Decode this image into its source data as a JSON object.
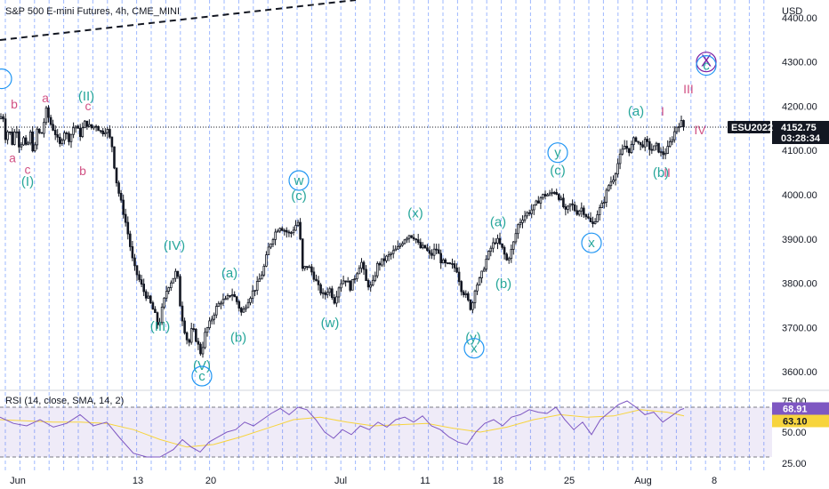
{
  "chart_data": [
    {
      "type": "candlestick",
      "title": "S&P 500 E-mini Futures, 4h, CME_MINI",
      "currency": "USD",
      "ylim": [
        3560,
        4440
      ],
      "y_ticks": [
        3600,
        3700,
        3800,
        3900,
        4000,
        4100,
        4200,
        4300,
        4400
      ],
      "y_tick_labels": [
        "3600.00",
        "3700.00",
        "3800.00",
        "3900.00",
        "4000.00",
        "4100.00",
        "4200.00",
        "4300.00",
        "4400.00"
      ],
      "x_labels": [
        "Jun",
        "13",
        "20",
        "Jul",
        "11",
        "18",
        "25",
        "Aug",
        "8"
      ],
      "grid": false,
      "price_path": [
        {
          "t": 0,
          "p": 4172
        },
        {
          "t": 3,
          "p": 4185
        },
        {
          "t": 6,
          "p": 4130
        },
        {
          "t": 10,
          "p": 4150
        },
        {
          "t": 14,
          "p": 4115
        },
        {
          "t": 18,
          "p": 4160
        },
        {
          "t": 22,
          "p": 4105
        },
        {
          "t": 26,
          "p": 4130
        },
        {
          "t": 30,
          "p": 4100
        },
        {
          "t": 34,
          "p": 4140
        },
        {
          "t": 38,
          "p": 4088
        },
        {
          "t": 42,
          "p": 4150
        },
        {
          "t": 46,
          "p": 4130
        },
        {
          "t": 52,
          "p": 4190
        },
        {
          "t": 57,
          "p": 4160
        },
        {
          "t": 62,
          "p": 4140
        },
        {
          "t": 67,
          "p": 4110
        },
        {
          "t": 72,
          "p": 4145
        },
        {
          "t": 78,
          "p": 4125
        },
        {
          "t": 84,
          "p": 4160
        },
        {
          "t": 90,
          "p": 4135
        },
        {
          "t": 96,
          "p": 4165
        },
        {
          "t": 102,
          "p": 4150
        },
        {
          "t": 108,
          "p": 4158
        },
        {
          "t": 114,
          "p": 4140
        },
        {
          "t": 120,
          "p": 4150
        },
        {
          "t": 126,
          "p": 4110
        },
        {
          "t": 130,
          "p": 4040
        },
        {
          "t": 134,
          "p": 4000
        },
        {
          "t": 140,
          "p": 3950
        },
        {
          "t": 145,
          "p": 3900
        },
        {
          "t": 150,
          "p": 3840
        },
        {
          "t": 156,
          "p": 3810
        },
        {
          "t": 162,
          "p": 3780
        },
        {
          "t": 168,
          "p": 3760
        },
        {
          "t": 174,
          "p": 3730
        },
        {
          "t": 178,
          "p": 3700
        },
        {
          "t": 182,
          "p": 3740
        },
        {
          "t": 188,
          "p": 3790
        },
        {
          "t": 194,
          "p": 3810
        },
        {
          "t": 199,
          "p": 3830
        },
        {
          "t": 203,
          "p": 3740
        },
        {
          "t": 208,
          "p": 3690
        },
        {
          "t": 212,
          "p": 3660
        },
        {
          "t": 216,
          "p": 3700
        },
        {
          "t": 221,
          "p": 3670
        },
        {
          "t": 226,
          "p": 3640
        },
        {
          "t": 231,
          "p": 3690
        },
        {
          "t": 236,
          "p": 3710
        },
        {
          "t": 242,
          "p": 3740
        },
        {
          "t": 248,
          "p": 3760
        },
        {
          "t": 254,
          "p": 3760
        },
        {
          "t": 260,
          "p": 3780
        },
        {
          "t": 266,
          "p": 3760
        },
        {
          "t": 272,
          "p": 3730
        },
        {
          "t": 278,
          "p": 3760
        },
        {
          "t": 284,
          "p": 3780
        },
        {
          "t": 290,
          "p": 3800
        },
        {
          "t": 296,
          "p": 3830
        },
        {
          "t": 302,
          "p": 3880
        },
        {
          "t": 308,
          "p": 3910
        },
        {
          "t": 314,
          "p": 3930
        },
        {
          "t": 320,
          "p": 3920
        },
        {
          "t": 326,
          "p": 3910
        },
        {
          "t": 332,
          "p": 3930
        },
        {
          "t": 336,
          "p": 3940
        },
        {
          "t": 340,
          "p": 3830
        },
        {
          "t": 346,
          "p": 3840
        },
        {
          "t": 352,
          "p": 3820
        },
        {
          "t": 358,
          "p": 3790
        },
        {
          "t": 364,
          "p": 3770
        },
        {
          "t": 370,
          "p": 3790
        },
        {
          "t": 376,
          "p": 3760
        },
        {
          "t": 382,
          "p": 3800
        },
        {
          "t": 388,
          "p": 3810
        },
        {
          "t": 394,
          "p": 3790
        },
        {
          "t": 400,
          "p": 3820
        },
        {
          "t": 406,
          "p": 3850
        },
        {
          "t": 412,
          "p": 3800
        },
        {
          "t": 418,
          "p": 3790
        },
        {
          "t": 424,
          "p": 3840
        },
        {
          "t": 430,
          "p": 3850
        },
        {
          "t": 436,
          "p": 3860
        },
        {
          "t": 442,
          "p": 3870
        },
        {
          "t": 448,
          "p": 3880
        },
        {
          "t": 454,
          "p": 3900
        },
        {
          "t": 460,
          "p": 3910
        },
        {
          "t": 466,
          "p": 3905
        },
        {
          "t": 472,
          "p": 3880
        },
        {
          "t": 478,
          "p": 3880
        },
        {
          "t": 484,
          "p": 3860
        },
        {
          "t": 490,
          "p": 3880
        },
        {
          "t": 496,
          "p": 3850
        },
        {
          "t": 502,
          "p": 3840
        },
        {
          "t": 508,
          "p": 3840
        },
        {
          "t": 514,
          "p": 3830
        },
        {
          "t": 518,
          "p": 3790
        },
        {
          "t": 524,
          "p": 3770
        },
        {
          "t": 530,
          "p": 3740
        },
        {
          "t": 534,
          "p": 3790
        },
        {
          "t": 540,
          "p": 3810
        },
        {
          "t": 546,
          "p": 3850
        },
        {
          "t": 552,
          "p": 3880
        },
        {
          "t": 558,
          "p": 3900
        },
        {
          "t": 564,
          "p": 3880
        },
        {
          "t": 570,
          "p": 3850
        },
        {
          "t": 576,
          "p": 3880
        },
        {
          "t": 582,
          "p": 3930
        },
        {
          "t": 588,
          "p": 3950
        },
        {
          "t": 594,
          "p": 3960
        },
        {
          "t": 600,
          "p": 3970
        },
        {
          "t": 606,
          "p": 3990
        },
        {
          "t": 612,
          "p": 4000
        },
        {
          "t": 618,
          "p": 4000
        },
        {
          "t": 624,
          "p": 4010
        },
        {
          "t": 630,
          "p": 3990
        },
        {
          "t": 636,
          "p": 3960
        },
        {
          "t": 642,
          "p": 3980
        },
        {
          "t": 648,
          "p": 3960
        },
        {
          "t": 654,
          "p": 3970
        },
        {
          "t": 660,
          "p": 3950
        },
        {
          "t": 666,
          "p": 3930
        },
        {
          "t": 672,
          "p": 3960
        },
        {
          "t": 678,
          "p": 3980
        },
        {
          "t": 684,
          "p": 4020
        },
        {
          "t": 690,
          "p": 4040
        },
        {
          "t": 696,
          "p": 4080
        },
        {
          "t": 702,
          "p": 4110
        },
        {
          "t": 708,
          "p": 4100
        },
        {
          "t": 714,
          "p": 4130
        },
        {
          "t": 720,
          "p": 4110
        },
        {
          "t": 726,
          "p": 4120
        },
        {
          "t": 732,
          "p": 4100
        },
        {
          "t": 738,
          "p": 4110
        },
        {
          "t": 744,
          "p": 4090
        },
        {
          "t": 750,
          "p": 4100
        },
        {
          "t": 756,
          "p": 4130
        },
        {
          "t": 762,
          "p": 4160
        },
        {
          "t": 766,
          "p": 4162
        },
        {
          "t": 769,
          "p": 4152
        }
      ],
      "last_price": {
        "symbol": "ESU2022",
        "price": "4152.75",
        "countdown": "03:28:34"
      },
      "wave_labels": [
        {
          "text": "b",
          "t": 16,
          "p": 4195,
          "color": "pink"
        },
        {
          "text": "a",
          "t": 51,
          "p": 4209,
          "color": "pink"
        },
        {
          "text": "(II)",
          "t": 97,
          "p": 4213,
          "color": "teal"
        },
        {
          "text": "c",
          "t": 99,
          "p": 4191,
          "color": "pink"
        },
        {
          "text": "a",
          "t": 14,
          "p": 4073,
          "color": "pink"
        },
        {
          "text": "c",
          "t": 31,
          "p": 4047,
          "color": "pink"
        },
        {
          "text": "(I)",
          "t": 31,
          "p": 4020,
          "color": "teal"
        },
        {
          "text": "b",
          "t": 93,
          "p": 4044,
          "color": "pink"
        },
        {
          "text": "(c)",
          "t": 336,
          "p": 3988,
          "color": "teal"
        },
        {
          "text": "(x)",
          "t": 467,
          "p": 3949,
          "color": "teal"
        },
        {
          "text": "(a)",
          "t": 560,
          "p": 3929,
          "color": "teal"
        },
        {
          "text": "(c)",
          "t": 627,
          "p": 4045,
          "color": "teal"
        },
        {
          "text": "(a)",
          "t": 715,
          "p": 4179,
          "color": "teal"
        },
        {
          "text": "I",
          "t": 745,
          "p": 4179,
          "color": "pink"
        },
        {
          "text": "III",
          "t": 774,
          "p": 4229,
          "color": "pink"
        },
        {
          "text": "IV",
          "t": 787,
          "p": 4137,
          "color": "pink"
        },
        {
          "text": "(b)",
          "t": 743,
          "p": 4040,
          "color": "teal"
        },
        {
          "text": "II",
          "t": 750,
          "p": 4040,
          "color": "pink"
        },
        {
          "text": "(IV)",
          "t": 196,
          "p": 3875,
          "color": "teal"
        },
        {
          "text": "(a)",
          "t": 258,
          "p": 3813,
          "color": "teal"
        },
        {
          "text": "(III)",
          "t": 180,
          "p": 3693,
          "color": "teal"
        },
        {
          "text": "(b)",
          "t": 268,
          "p": 3667,
          "color": "teal"
        },
        {
          "text": "(w)",
          "t": 371,
          "p": 3701,
          "color": "teal"
        },
        {
          "text": "(b)",
          "t": 566,
          "p": 3789,
          "color": "teal"
        },
        {
          "text": "(y)",
          "t": 532,
          "p": 3667,
          "color": "teal"
        },
        {
          "text": "(V)",
          "t": 227,
          "p": 3604,
          "color": "teal"
        }
      ],
      "circled_labels": [
        {
          "text": "w",
          "t": 336,
          "p": 4022,
          "color": "teal"
        },
        {
          "text": "y",
          "t": 627,
          "p": 4085,
          "color": "teal"
        },
        {
          "text": "x",
          "t": 665,
          "p": 3881,
          "color": "teal"
        },
        {
          "text": "x",
          "t": 533,
          "p": 3643,
          "color": "teal"
        },
        {
          "text": "c",
          "t": 227,
          "p": 3580,
          "color": "teal"
        },
        {
          "text": "X",
          "t": 794,
          "p": 4290,
          "color": "purple"
        },
        {
          "text": "c",
          "t": 794,
          "p": 4282,
          "color": "teal"
        },
        {
          "text": "",
          "t": 2,
          "p": 4252,
          "color": "teal"
        }
      ]
    },
    {
      "type": "line",
      "title": "RSI (14, close, SMA, 14, 2)",
      "ylim": [
        20,
        80
      ],
      "y_tick_labels": [
        "25.00",
        "50.00",
        "75.00"
      ],
      "y_ticks": [
        25,
        50,
        75
      ],
      "band": [
        30,
        70
      ],
      "current_rsi": "68.91",
      "current_sma": "63.10",
      "series": [
        {
          "role": "rsi",
          "t": [
            0,
            15,
            30,
            45,
            60,
            75,
            90,
            105,
            120,
            135,
            150,
            165,
            180,
            195,
            205,
            215,
            225,
            235,
            245,
            255,
            265,
            275,
            285,
            295,
            305,
            315,
            325,
            335,
            345,
            355,
            365,
            375,
            385,
            395,
            405,
            415,
            425,
            435,
            445,
            455,
            465,
            475,
            485,
            495,
            505,
            515,
            525,
            535,
            545,
            555,
            565,
            575,
            585,
            595,
            605,
            615,
            625,
            635,
            645,
            655,
            665,
            675,
            685,
            695,
            705,
            715,
            725,
            735,
            745,
            755,
            765,
            769
          ],
          "v": [
            62,
            57,
            55,
            60,
            54,
            57,
            64,
            55,
            58,
            45,
            33,
            30,
            30,
            36,
            44,
            38,
            34,
            42,
            46,
            50,
            52,
            58,
            55,
            60,
            65,
            69,
            64,
            70,
            68,
            60,
            50,
            45,
            52,
            48,
            55,
            52,
            58,
            54,
            60,
            62,
            58,
            63,
            55,
            52,
            46,
            42,
            40,
            50,
            57,
            60,
            55,
            62,
            64,
            68,
            66,
            65,
            70,
            60,
            52,
            58,
            48,
            60,
            66,
            72,
            75,
            70,
            64,
            66,
            58,
            63,
            68,
            68.91
          ]
        },
        {
          "role": "sma",
          "t": [
            0,
            30,
            60,
            90,
            120,
            150,
            180,
            210,
            240,
            270,
            300,
            330,
            360,
            390,
            420,
            450,
            480,
            510,
            540,
            570,
            600,
            630,
            660,
            690,
            720,
            750,
            769
          ],
          "v": [
            60,
            59,
            58,
            58,
            57,
            52,
            44,
            38,
            40,
            46,
            53,
            60,
            62,
            58,
            55,
            56,
            57,
            53,
            50,
            54,
            60,
            64,
            62,
            63,
            68,
            66,
            63.1
          ]
        }
      ]
    }
  ]
}
